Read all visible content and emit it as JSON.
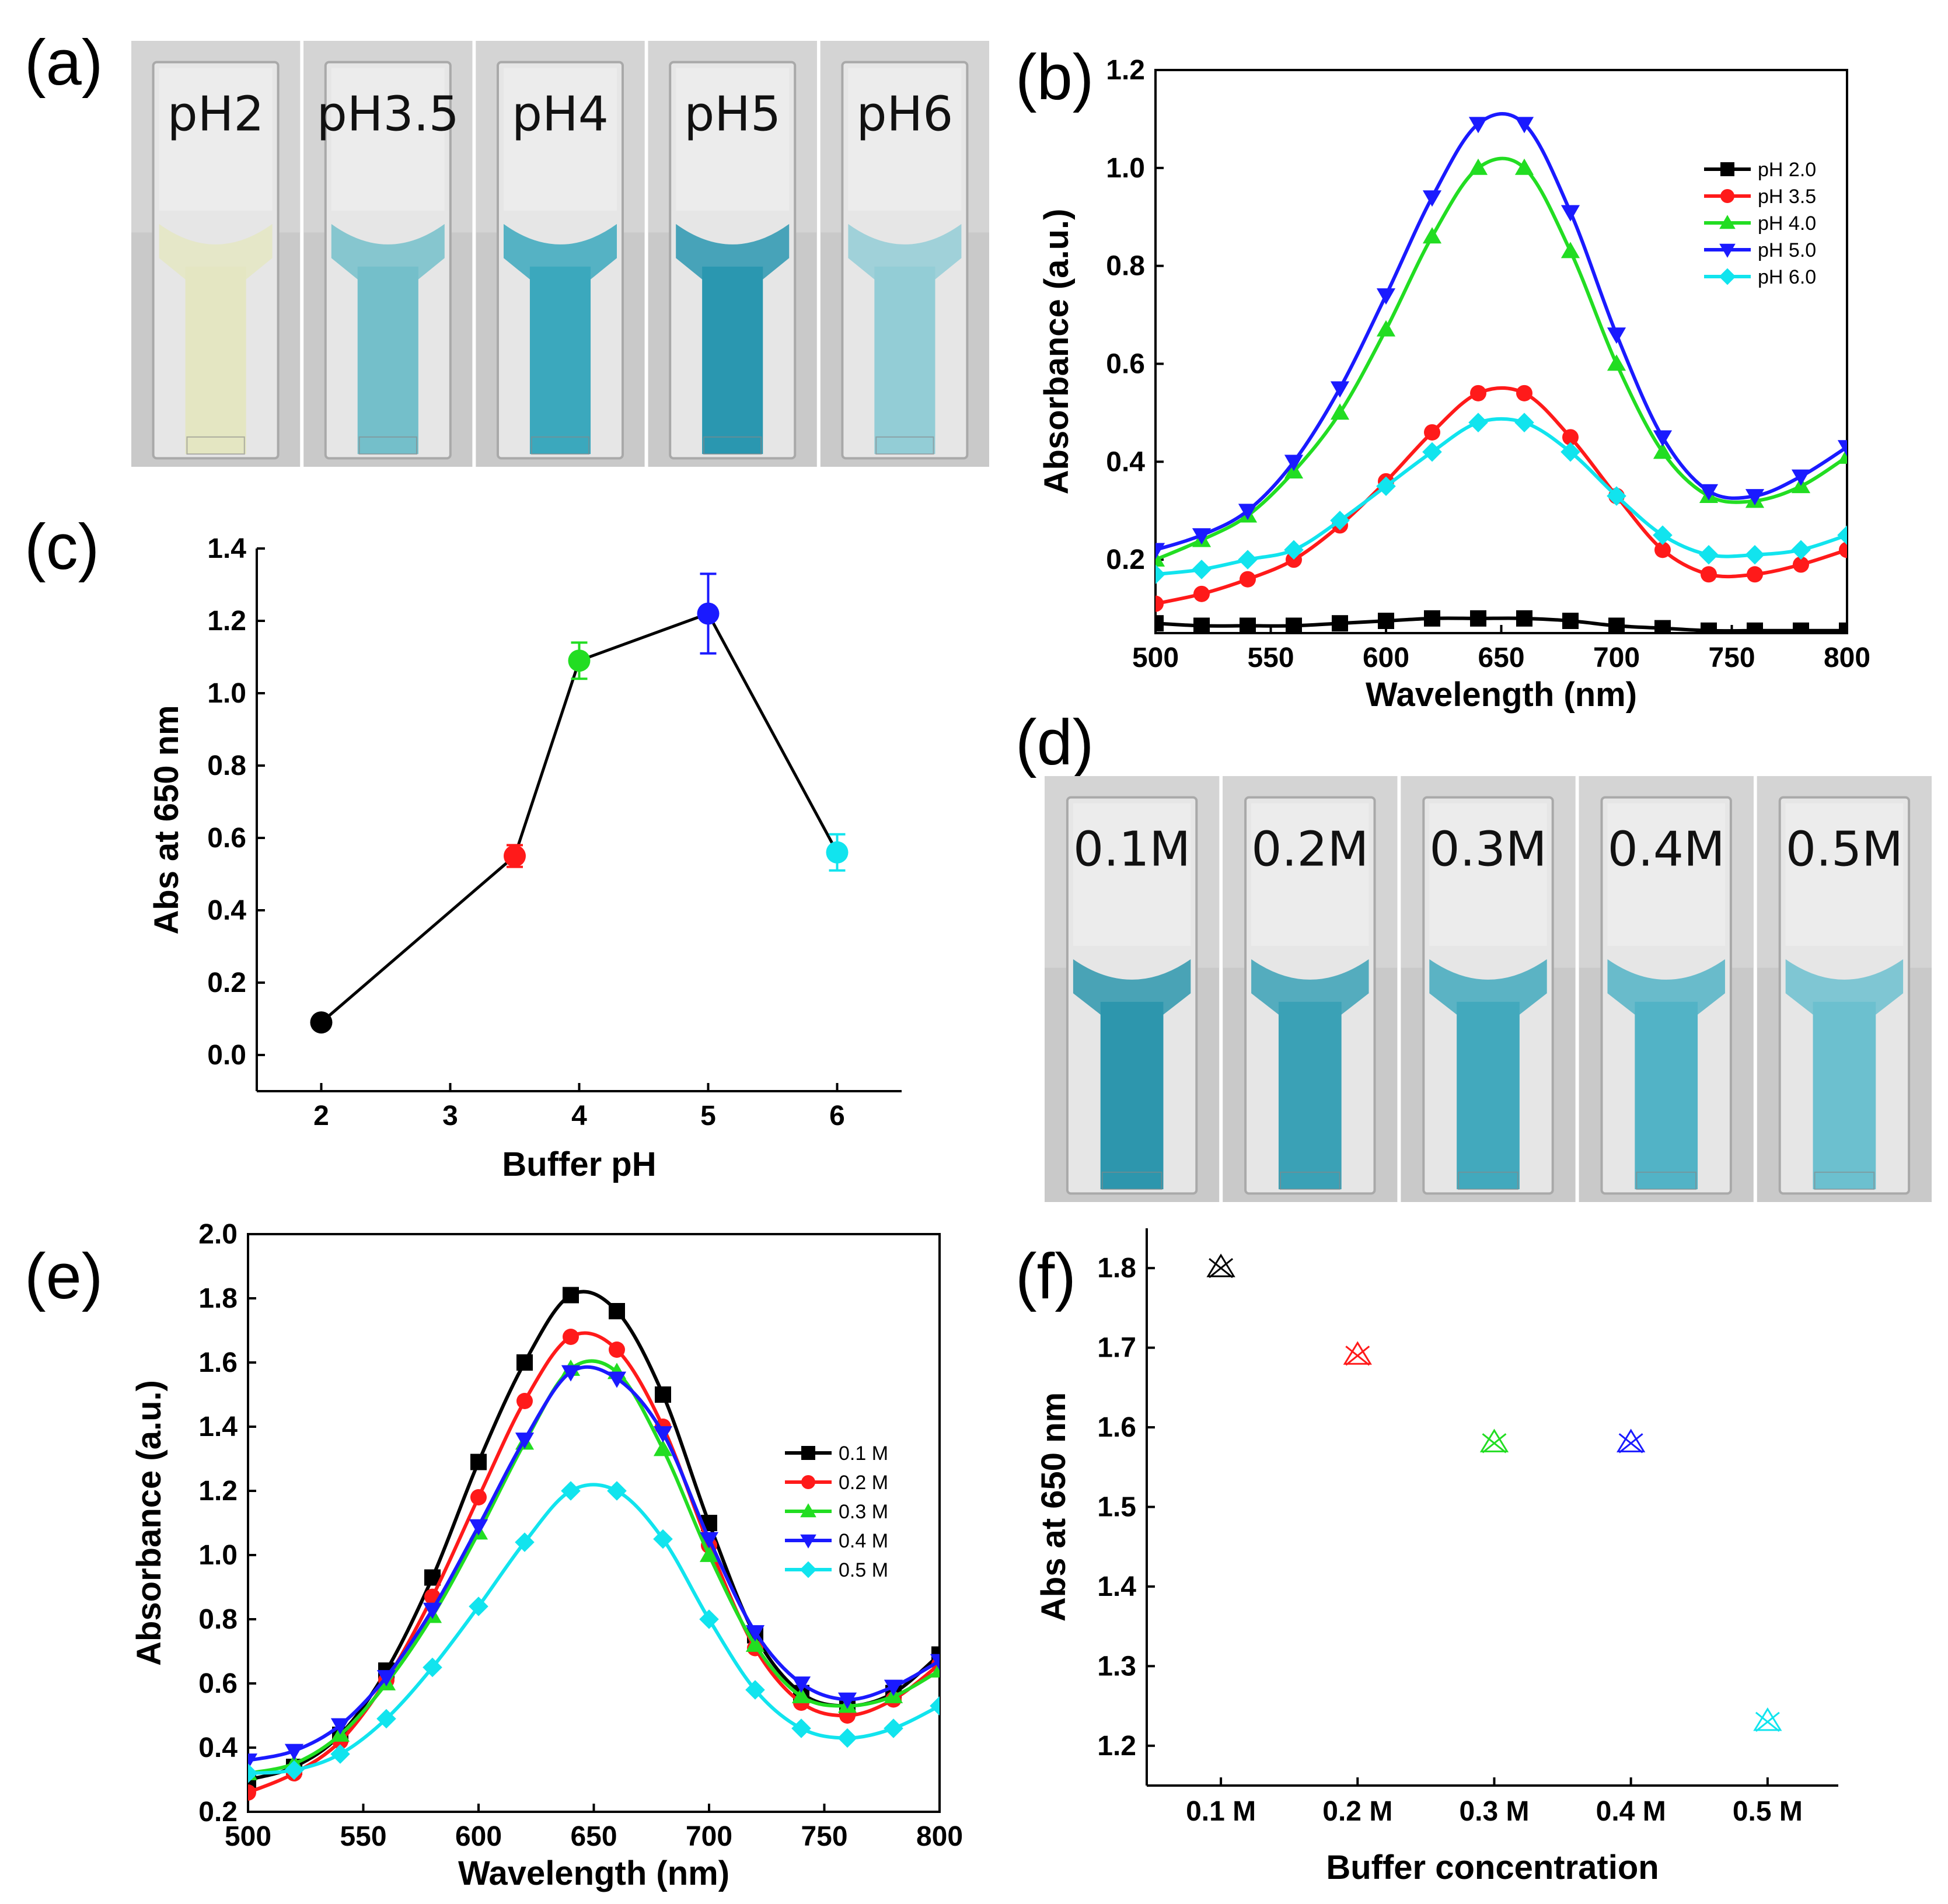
{
  "panels": {
    "a": {
      "label": "(a)",
      "cuvettes": [
        {
          "label": "pH2",
          "color": "#e4e6c2"
        },
        {
          "label": "pH3.5",
          "color": "#74bfca"
        },
        {
          "label": "pH4",
          "color": "#3ba8bd"
        },
        {
          "label": "pH5",
          "color": "#2a97b0"
        },
        {
          "label": "pH6",
          "color": "#93cdd6"
        }
      ]
    },
    "b": {
      "label": "(b)"
    },
    "c": {
      "label": "(c)"
    },
    "d": {
      "label": "(d)",
      "cuvettes": [
        {
          "label": "0.1M",
          "color": "#2d96ad"
        },
        {
          "label": "0.2M",
          "color": "#3aa1b6"
        },
        {
          "label": "0.3M",
          "color": "#42a9bd"
        },
        {
          "label": "0.4M",
          "color": "#52b3c6"
        },
        {
          "label": "0.5M",
          "color": "#6cc0cf"
        }
      ]
    },
    "e": {
      "label": "(e)"
    },
    "f": {
      "label": "(f)"
    }
  },
  "chart_data": [
    {
      "id": "b",
      "type": "line",
      "xlabel": "Wavelength (nm)",
      "ylabel": "Absorbance (a.u.)",
      "xlim": [
        500,
        800
      ],
      "ylim": [
        0.05,
        1.2
      ],
      "xticks": [
        500,
        550,
        600,
        650,
        700,
        750,
        800
      ],
      "xtick_labels": [
        "500",
        "550",
        "600",
        "650",
        "700",
        "750",
        "800"
      ],
      "yticks": [
        0.2,
        0.4,
        0.6,
        0.8,
        1.0,
        1.2
      ],
      "ytick_labels": [
        "0.2",
        "0.4",
        "0.6",
        "0.8",
        "1.0",
        "1.2"
      ],
      "legend_position": "top-right",
      "x": [
        500,
        520,
        540,
        560,
        580,
        600,
        620,
        640,
        660,
        680,
        700,
        720,
        740,
        760,
        780,
        800
      ],
      "series": [
        {
          "name": "pH 2.0",
          "color": "#000000",
          "marker": "square",
          "values": [
            0.07,
            0.065,
            0.065,
            0.065,
            0.07,
            0.075,
            0.08,
            0.08,
            0.08,
            0.075,
            0.065,
            0.06,
            0.055,
            0.055,
            0.055,
            0.055
          ]
        },
        {
          "name": "pH 3.5",
          "color": "#ff1a1a",
          "marker": "circle",
          "values": [
            0.11,
            0.13,
            0.16,
            0.2,
            0.27,
            0.36,
            0.46,
            0.54,
            0.54,
            0.45,
            0.33,
            0.22,
            0.17,
            0.17,
            0.19,
            0.22
          ]
        },
        {
          "name": "pH 4.0",
          "color": "#22dd22",
          "marker": "triangle-up",
          "values": [
            0.2,
            0.24,
            0.29,
            0.38,
            0.5,
            0.67,
            0.86,
            1.0,
            1.0,
            0.83,
            0.6,
            0.42,
            0.33,
            0.32,
            0.35,
            0.41
          ]
        },
        {
          "name": "pH 5.0",
          "color": "#1a1aff",
          "marker": "triangle-down",
          "values": [
            0.22,
            0.25,
            0.3,
            0.4,
            0.55,
            0.74,
            0.94,
            1.09,
            1.09,
            0.91,
            0.66,
            0.45,
            0.34,
            0.33,
            0.37,
            0.43
          ]
        },
        {
          "name": "pH 6.0",
          "color": "#11e4ee",
          "marker": "diamond",
          "values": [
            0.17,
            0.18,
            0.2,
            0.22,
            0.28,
            0.35,
            0.42,
            0.48,
            0.48,
            0.42,
            0.33,
            0.25,
            0.21,
            0.21,
            0.22,
            0.25
          ]
        }
      ]
    },
    {
      "id": "c",
      "type": "line",
      "xlabel": "Buffer pH",
      "ylabel": "Abs at 650 nm",
      "xlim": [
        1.5,
        6.5
      ],
      "ylim": [
        -0.1,
        1.4
      ],
      "xticks": [
        2,
        3,
        4,
        5,
        6
      ],
      "xtick_labels": [
        "2",
        "3",
        "4",
        "5",
        "6"
      ],
      "yticks": [
        0.0,
        0.2,
        0.4,
        0.6,
        0.8,
        1.0,
        1.2,
        1.4
      ],
      "ytick_labels": [
        "0.0",
        "0.2",
        "0.4",
        "0.6",
        "0.8",
        "1.0",
        "1.2",
        "1.4"
      ],
      "x": [
        2,
        3.5,
        4,
        5,
        6
      ],
      "values": [
        0.09,
        0.55,
        1.09,
        1.22,
        0.56
      ],
      "errors": [
        0.01,
        0.03,
        0.05,
        0.11,
        0.05
      ],
      "colors": [
        "#000000",
        "#ff1a1a",
        "#22dd22",
        "#1a1aff",
        "#11e4ee"
      ]
    },
    {
      "id": "e",
      "type": "line",
      "xlabel": "Wavelength (nm)",
      "ylabel": "Absorbance (a.u.)",
      "xlim": [
        500,
        800
      ],
      "ylim": [
        0.2,
        2.0
      ],
      "xticks": [
        500,
        550,
        600,
        650,
        700,
        750,
        800
      ],
      "xtick_labels": [
        "500",
        "550",
        "600",
        "650",
        "700",
        "750",
        "800"
      ],
      "yticks": [
        0.2,
        0.4,
        0.6,
        0.8,
        1.0,
        1.2,
        1.4,
        1.6,
        1.8,
        2.0
      ],
      "ytick_labels": [
        "0.2",
        "0.4",
        "0.6",
        "0.8",
        "1.0",
        "1.2",
        "1.4",
        "1.6",
        "1.8",
        "2.0"
      ],
      "legend_position": "right",
      "x": [
        500,
        520,
        540,
        560,
        580,
        600,
        620,
        640,
        660,
        680,
        700,
        720,
        740,
        760,
        780,
        800
      ],
      "series": [
        {
          "name": "0.1 M",
          "color": "#000000",
          "marker": "square",
          "values": [
            0.3,
            0.34,
            0.44,
            0.64,
            0.93,
            1.29,
            1.6,
            1.81,
            1.76,
            1.5,
            1.1,
            0.75,
            0.57,
            0.53,
            0.57,
            0.69
          ]
        },
        {
          "name": "0.2 M",
          "color": "#ff1a1a",
          "marker": "circle",
          "values": [
            0.26,
            0.32,
            0.42,
            0.61,
            0.87,
            1.18,
            1.48,
            1.68,
            1.64,
            1.4,
            1.03,
            0.71,
            0.54,
            0.5,
            0.55,
            0.66
          ]
        },
        {
          "name": "0.3 M",
          "color": "#22dd22",
          "marker": "triangle-up",
          "values": [
            0.32,
            0.35,
            0.44,
            0.6,
            0.81,
            1.07,
            1.35,
            1.58,
            1.57,
            1.33,
            1.0,
            0.72,
            0.56,
            0.53,
            0.56,
            0.64
          ]
        },
        {
          "name": "0.4 M",
          "color": "#1a1aff",
          "marker": "triangle-down",
          "values": [
            0.36,
            0.39,
            0.47,
            0.62,
            0.83,
            1.09,
            1.36,
            1.57,
            1.55,
            1.38,
            1.05,
            0.76,
            0.6,
            0.55,
            0.59,
            0.67
          ]
        },
        {
          "name": "0.5 M",
          "color": "#11e4ee",
          "marker": "diamond",
          "values": [
            0.32,
            0.33,
            0.38,
            0.49,
            0.65,
            0.84,
            1.04,
            1.2,
            1.2,
            1.05,
            0.8,
            0.58,
            0.46,
            0.43,
            0.46,
            0.53
          ]
        }
      ]
    },
    {
      "id": "f",
      "type": "scatter",
      "xlabel": "Buffer concentration",
      "ylabel": "Abs at 650 nm",
      "ylim": [
        1.15,
        1.85
      ],
      "categories": [
        "0.1 M",
        "0.2 M",
        "0.3 M",
        "0.4 M",
        "0.5 M"
      ],
      "yticks": [
        1.2,
        1.3,
        1.4,
        1.5,
        1.6,
        1.7,
        1.8
      ],
      "ytick_labels": [
        "1.2",
        "1.3",
        "1.4",
        "1.5",
        "1.6",
        "1.7",
        "1.8"
      ],
      "values": [
        1.8,
        1.69,
        1.58,
        1.58,
        1.23
      ],
      "colors": [
        "#000000",
        "#ff1a1a",
        "#22dd22",
        "#1a1aff",
        "#11e4ee"
      ]
    }
  ]
}
